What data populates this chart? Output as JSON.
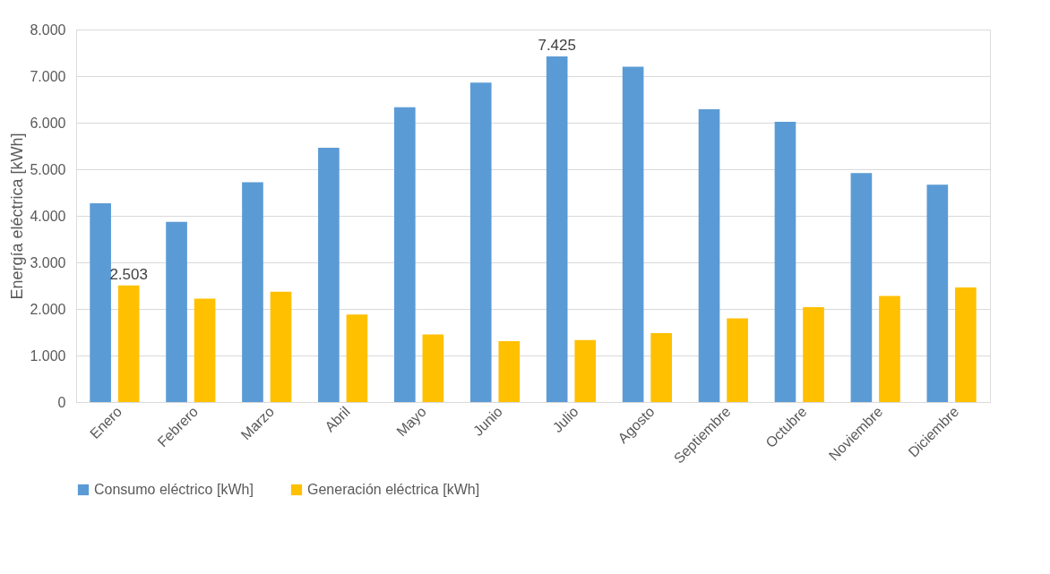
{
  "chart_data": {
    "type": "bar",
    "ylabel": "Energía eléctrica [kWh]",
    "categories": [
      "Enero",
      "Febrero",
      "Marzo",
      "Abril",
      "Mayo",
      "Junio",
      "Julio",
      "Agosto",
      "Septiembre",
      "Octubre",
      "Noviembre",
      "Diciembre"
    ],
    "series": [
      {
        "name": "Consumo eléctrico [kWh]",
        "color": "#5b9bd5",
        "values": [
          4270,
          3870,
          4720,
          5460,
          6330,
          6860,
          7425,
          7200,
          6290,
          6020,
          4920,
          4670
        ],
        "value_labels": [
          null,
          null,
          null,
          null,
          null,
          null,
          "7.425",
          null,
          null,
          null,
          null,
          null
        ]
      },
      {
        "name": "Generación eléctrica [kWh]",
        "color": "#ffc000",
        "values": [
          2503,
          2220,
          2370,
          1880,
          1450,
          1310,
          1330,
          1480,
          1800,
          2040,
          2280,
          2460
        ],
        "value_labels": [
          "2.503",
          null,
          null,
          null,
          null,
          null,
          null,
          null,
          null,
          null,
          null,
          null
        ]
      }
    ],
    "ylim": [
      0,
      8000
    ],
    "yticks": [
      0,
      {
        "value": 1000,
        "label": "1.000"
      },
      {
        "value": 2000,
        "label": "2.000"
      },
      {
        "value": 3000,
        "label": "3.000"
      },
      {
        "value": 4000,
        "label": "4.000"
      },
      {
        "value": 5000,
        "label": "5.000"
      },
      {
        "value": 6000,
        "label": "6.000"
      },
      {
        "value": 7000,
        "label": "7.000"
      },
      {
        "value": 8000,
        "label": "8.000"
      }
    ],
    "grid": "y",
    "legend": "bottom"
  }
}
